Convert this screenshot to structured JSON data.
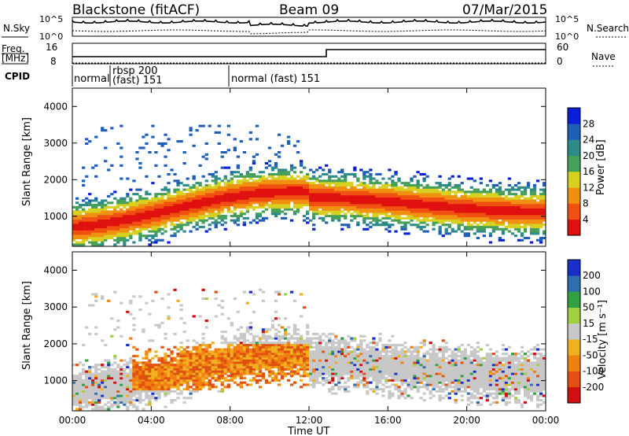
{
  "header": {
    "station": "Blackstone (fitACF)",
    "beam": "Beam 09",
    "date": "07/Mar/2015"
  },
  "panels": {
    "noise": {
      "left_label": "N.Sky",
      "right_label": "N.Search",
      "ticks": [
        "10^5",
        "10^0"
      ]
    },
    "freq": {
      "left_label_1": "Freq.",
      "left_label_2": "[MHz]",
      "right_label": "Nave",
      "left_ticks": [
        "16",
        "8"
      ],
      "right_ticks": [
        "60",
        "0"
      ]
    },
    "cpid": {
      "label": "CPID",
      "modes": [
        "normal",
        "rbsp 200",
        "(fast) 151",
        "normal (fast)  151"
      ]
    }
  },
  "chart_data": [
    {
      "type": "heatmap",
      "name": "power",
      "ylabel": "Slant Range [km]",
      "xlabel": "",
      "yticks": [
        1000,
        2000,
        3000,
        4000
      ],
      "ylim": [
        180,
        4500
      ],
      "xlim": [
        0,
        24
      ],
      "colorbar": {
        "label": "Power [dB]",
        "ticks": [
          "4",
          "8",
          "12",
          "16",
          "20",
          "24",
          "28"
        ],
        "colors": [
          "#0a1fd8",
          "#1f5fb8",
          "#2f8a8a",
          "#46a05a",
          "#d8d020",
          "#f09010",
          "#f05010",
          "#e01010"
        ]
      }
    },
    {
      "type": "heatmap",
      "name": "velocity",
      "ylabel": "Slant Range [km]",
      "xlabel": "Time UT",
      "yticks": [
        1000,
        2000,
        3000,
        4000
      ],
      "ylim": [
        180,
        4500
      ],
      "xticks": [
        "00:00",
        "04:00",
        "08:00",
        "12:00",
        "16:00",
        "20:00",
        "00:00"
      ],
      "xlim": [
        0,
        24
      ],
      "colorbar": {
        "label": "Velocity [m s⁻¹]",
        "ticks": [
          "200",
          "100",
          "50",
          "15",
          "-15",
          "-50",
          "-100",
          "-200"
        ],
        "colors": [
          "#1a2fc8",
          "#2f6fb0",
          "#30a040",
          "#a0d040",
          "#c8c8c8",
          "#f0b020",
          "#f08010",
          "#e05010",
          "#d01010"
        ]
      }
    }
  ]
}
